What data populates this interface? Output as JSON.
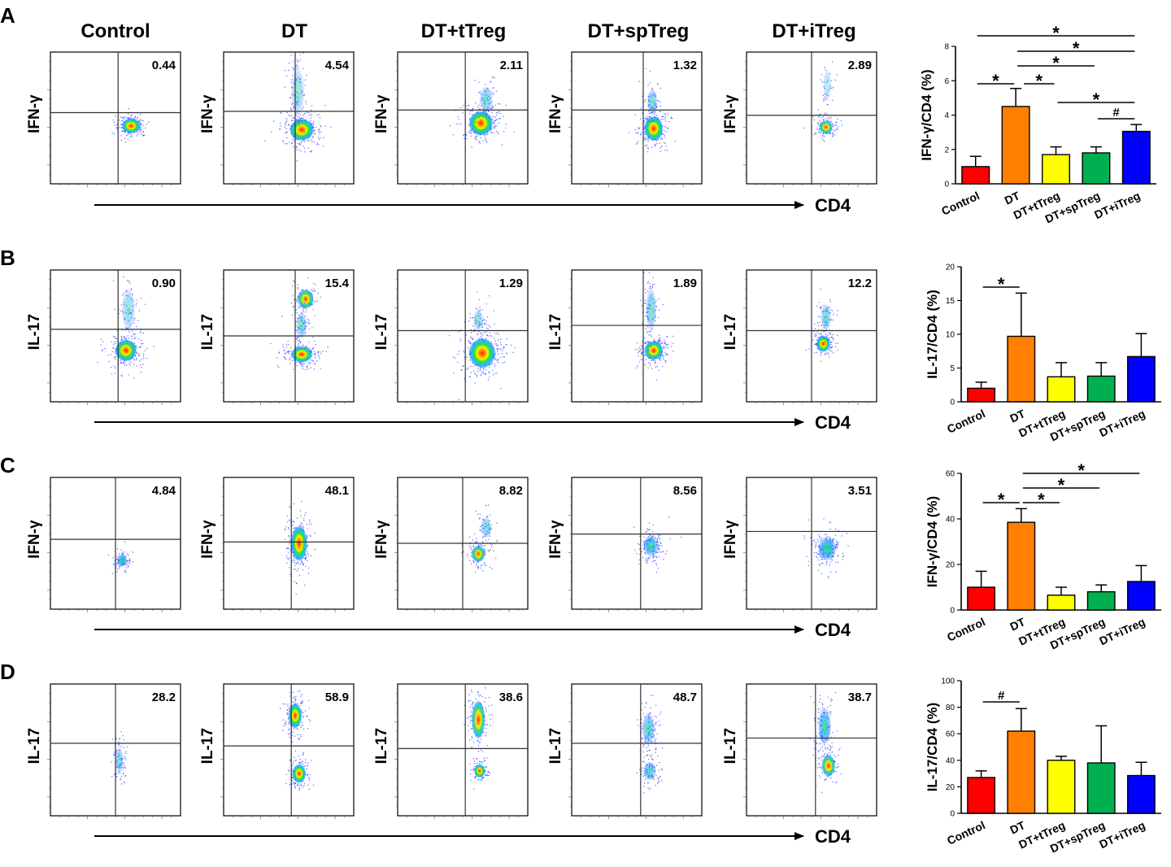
{
  "column_titles": [
    "Control",
    "DT",
    "DT+tTreg",
    "DT+spTreg",
    "DT+iTreg"
  ],
  "axis_label": "CD4",
  "panels": [
    {
      "letter": "A",
      "marker": "IFN-γ",
      "flow_values": [
        "0.44",
        "4.54",
        "2.11",
        "1.32",
        "2.89"
      ]
    },
    {
      "letter": "B",
      "marker": "IL-17",
      "flow_values": [
        "0.90",
        "15.4",
        "1.29",
        "1.89",
        "12.2"
      ]
    },
    {
      "letter": "C",
      "marker": "IFN-γ",
      "flow_values": [
        "4.84",
        "48.1",
        "8.82",
        "8.56",
        "3.51"
      ]
    },
    {
      "letter": "D",
      "marker": "IL-17",
      "flow_values": [
        "28.2",
        "58.9",
        "38.6",
        "48.7",
        "38.7"
      ]
    }
  ],
  "chart_data": [
    {
      "type": "bar",
      "panel": "A",
      "categories": [
        "Control",
        "DT",
        "DT+tTreg",
        "DT+spTreg",
        "DT+iTreg"
      ],
      "values": [
        1.0,
        4.5,
        1.7,
        1.8,
        3.05
      ],
      "errors": [
        0.6,
        1.05,
        0.45,
        0.35,
        0.4
      ],
      "ylabel": "IFN-γ/CD4 (%)",
      "ylim": [
        0,
        8
      ],
      "yticks": [
        0,
        2,
        4,
        6,
        8
      ],
      "significance": [
        {
          "from": "Control",
          "to": "DT",
          "label": "*"
        },
        {
          "from": "DT",
          "to": "DT+tTreg",
          "label": "*"
        },
        {
          "from": "Control",
          "to": "DT+iTreg",
          "label": "*"
        },
        {
          "from": "DT",
          "to": "DT+iTreg",
          "label": "*"
        },
        {
          "from": "DT",
          "to": "DT+spTreg",
          "label": "*"
        },
        {
          "from": "DT+tTreg",
          "to": "DT+iTreg",
          "label": "*"
        },
        {
          "from": "DT+spTreg",
          "to": "DT+iTreg",
          "label": "#"
        }
      ]
    },
    {
      "type": "bar",
      "panel": "B",
      "categories": [
        "Control",
        "DT",
        "DT+tTreg",
        "DT+spTreg",
        "DT+iTreg"
      ],
      "values": [
        2.0,
        9.7,
        3.7,
        3.8,
        6.7
      ],
      "errors": [
        0.9,
        6.4,
        2.1,
        2.0,
        3.4
      ],
      "ylabel": "IL-17/CD4 (%)",
      "ylim": [
        0,
        20
      ],
      "yticks": [
        0,
        5,
        10,
        15,
        20
      ],
      "significance": [
        {
          "from": "Control",
          "to": "DT",
          "label": "*"
        }
      ]
    },
    {
      "type": "bar",
      "panel": "C",
      "categories": [
        "Control",
        "DT",
        "DT+tTreg",
        "DT+spTreg",
        "DT+iTreg"
      ],
      "values": [
        10,
        38.5,
        6.5,
        8,
        12.5
      ],
      "errors": [
        7,
        6,
        3.5,
        3,
        7
      ],
      "ylabel": "IFN-γ/CD4 (%)",
      "ylim": [
        0,
        60
      ],
      "yticks": [
        0,
        20,
        40,
        60
      ],
      "significance": [
        {
          "from": "Control",
          "to": "DT",
          "label": "*"
        },
        {
          "from": "DT",
          "to": "DT+tTreg",
          "label": "*"
        },
        {
          "from": "DT",
          "to": "DT+spTreg",
          "label": "*"
        },
        {
          "from": "DT",
          "to": "DT+iTreg",
          "label": "*"
        }
      ]
    },
    {
      "type": "bar",
      "panel": "D",
      "categories": [
        "Control",
        "DT",
        "DT+tTreg",
        "DT+spTreg",
        "DT+iTreg"
      ],
      "values": [
        27,
        62,
        40,
        38,
        28.5
      ],
      "errors": [
        5,
        17,
        3,
        28,
        10
      ],
      "ylabel": "IL-17/CD4 (%)",
      "ylim": [
        0,
        100
      ],
      "yticks": [
        0,
        20,
        40,
        60,
        80,
        100
      ],
      "significance": [
        {
          "from": "Control",
          "to": "DT",
          "label": "#"
        }
      ]
    }
  ],
  "colors": {
    "bars": [
      "#ff0000",
      "#ff8000",
      "#ffff00",
      "#00b050",
      "#0000ff"
    ],
    "axis": "#000000",
    "density_low": "#0000ff",
    "density_mid": "#00e000",
    "density_high": "#ff0000"
  }
}
